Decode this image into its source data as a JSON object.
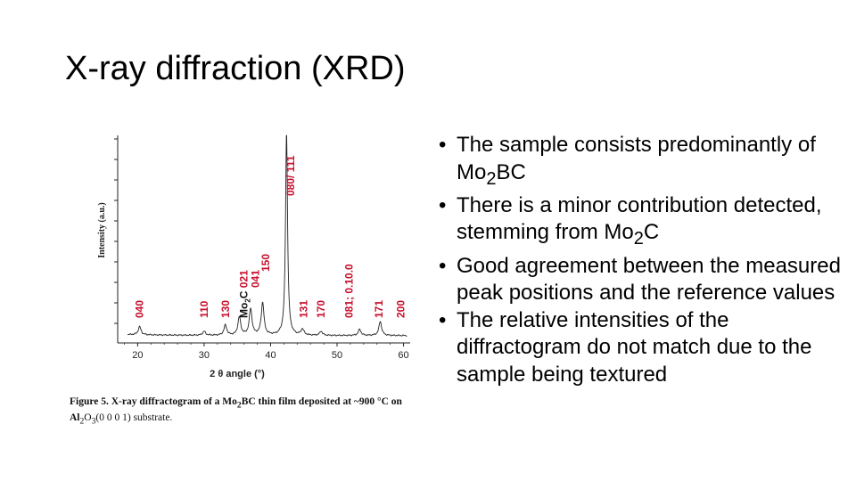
{
  "slide": {
    "title": "X-ray diffraction (XRD)",
    "bullets": [
      {
        "pre": "The sample consists predominantly of Mo",
        "sub": "2",
        "post": "BC"
      },
      {
        "pre": "There is a minor contribution detected, stemming from Mo",
        "sub": "2",
        "post": "C"
      },
      {
        "pre": "Good agreement between the measured peak positions and the reference values",
        "sub": "",
        "post": ""
      },
      {
        "pre": "The relative intensities of the diffractogram do not match due to the sample being textured",
        "sub": "",
        "post": ""
      }
    ]
  },
  "figure": {
    "caption_label": "Figure 5.",
    "caption_text_1": "X-ray diffractogram of a Mo",
    "caption_sub_1": "2",
    "caption_text_2": "BC thin film deposited at ~900 °C on Al",
    "caption_sub_2": "2",
    "caption_text_3": "O",
    "caption_sub_3": "3",
    "caption_text_4": "(0 0 0 1) substrate."
  },
  "chart_data": {
    "type": "line",
    "xlabel": "2 θ angle (°)",
    "ylabel": "Intensity (a.u.)",
    "xlim": [
      17,
      61
    ],
    "ylim": [
      0,
      100
    ],
    "xticks": [
      20,
      30,
      40,
      50,
      60
    ],
    "grid": false,
    "line_color": "#222222",
    "label_color": "#c8102e",
    "peaks": [
      {
        "x": 20.3,
        "y": 4
      },
      {
        "x": 30.0,
        "y": 2
      },
      {
        "x": 33.2,
        "y": 5
      },
      {
        "x": 35.3,
        "y": 9
      },
      {
        "x": 37.0,
        "y": 13
      },
      {
        "x": 38.8,
        "y": 16
      },
      {
        "x": 42.4,
        "y": 100
      },
      {
        "x": 44.8,
        "y": 3
      },
      {
        "x": 47.6,
        "y": 2
      },
      {
        "x": 53.4,
        "y": 3
      },
      {
        "x": 56.5,
        "y": 7
      }
    ],
    "peak_labels": [
      {
        "x": 20.3,
        "text": "040",
        "color": "#c8102e"
      },
      {
        "x": 30.0,
        "text": "110",
        "color": "#c8102e"
      },
      {
        "x": 33.2,
        "text": "130",
        "color": "#c8102e"
      },
      {
        "x": 36.0,
        "text": "Mo2C 021",
        "color": "#111111"
      },
      {
        "x": 37.7,
        "text": "041",
        "color": "#c8102e"
      },
      {
        "x": 39.3,
        "text": "150",
        "color": "#c8102e"
      },
      {
        "x": 43.0,
        "text": "080/ 111",
        "color": "#c8102e"
      },
      {
        "x": 45.0,
        "text": "131",
        "color": "#c8102e"
      },
      {
        "x": 47.6,
        "text": "170",
        "color": "#c8102e"
      },
      {
        "x": 51.8,
        "text": "081; 0.10.0",
        "color": "#c8102e"
      },
      {
        "x": 56.3,
        "text": "171",
        "color": "#c8102e"
      },
      {
        "x": 59.6,
        "text": "200",
        "color": "#c8102e"
      }
    ]
  }
}
